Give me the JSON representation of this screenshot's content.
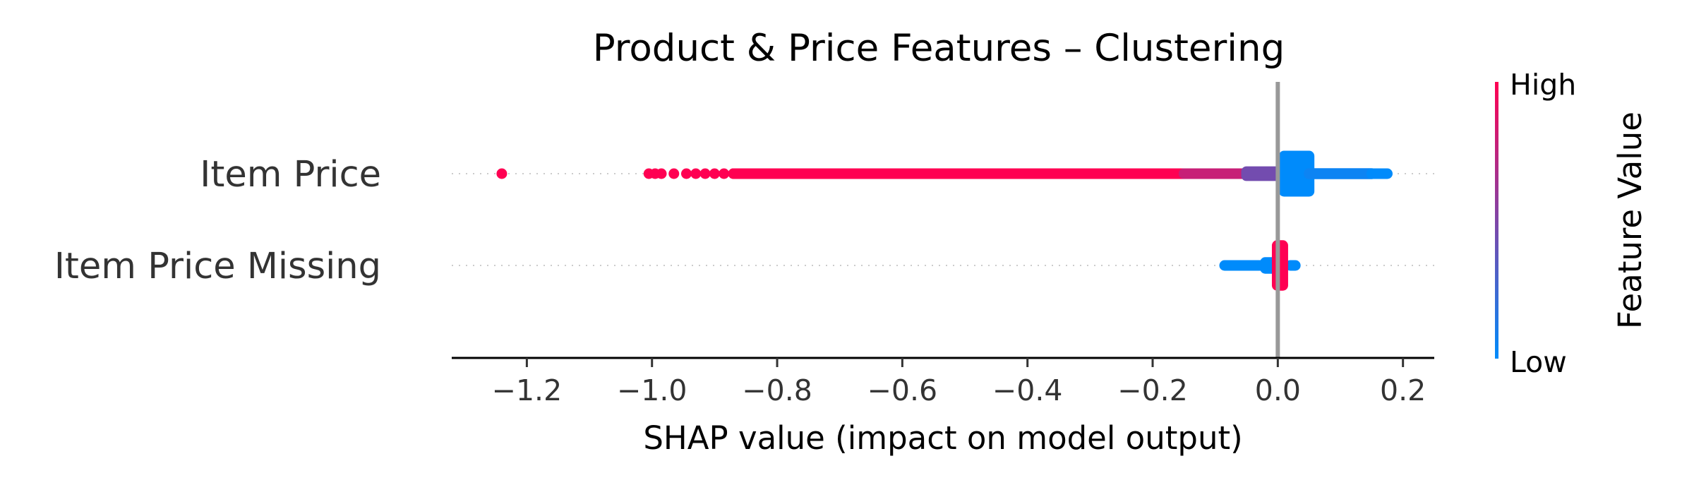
{
  "chart_data": {
    "type": "scatter",
    "title": "Product & Price Features – Clustering",
    "xlabel": "SHAP value (impact on model output)",
    "xlim": [
      -1.32,
      0.25
    ],
    "xticks": [
      -1.2,
      -1.0,
      -0.8,
      -0.6,
      -0.4,
      -0.2,
      0.0,
      0.2
    ],
    "xtick_labels": [
      "−1.2",
      "−1.0",
      "−0.8",
      "−0.6",
      "−0.4",
      "−0.2",
      "0.0",
      "0.2"
    ],
    "zero_line": 0.0,
    "features": [
      {
        "name": "Item Price",
        "points": [
          {
            "x": -1.24,
            "v": 1.0
          },
          {
            "x": -1.005,
            "v": 1.0
          },
          {
            "x": -0.995,
            "v": 1.0
          },
          {
            "x": -0.985,
            "v": 1.0
          },
          {
            "x": -0.965,
            "v": 1.0
          },
          {
            "x": -0.945,
            "v": 1.0
          },
          {
            "x": -0.93,
            "v": 1.0
          },
          {
            "x": -0.915,
            "v": 1.0
          },
          {
            "x": -0.9,
            "v": 1.0
          },
          {
            "x": -0.885,
            "v": 1.0
          },
          {
            "x": -0.87,
            "v": 1.0
          }
        ],
        "bands": [
          {
            "x0": -0.87,
            "x1": -0.82,
            "half_spread": 0.05,
            "v": 1.0
          },
          {
            "x0": -0.82,
            "x1": -0.55,
            "half_spread": 0.08,
            "v": 1.0
          },
          {
            "x0": -0.55,
            "x1": -0.15,
            "half_spread": 0.09,
            "v": 1.0
          },
          {
            "x0": -0.15,
            "x1": -0.05,
            "half_spread": 0.1,
            "v": 0.78
          },
          {
            "x0": -0.05,
            "x1": 0.01,
            "half_spread": 0.16,
            "v": 0.45
          },
          {
            "x0": 0.01,
            "x1": 0.05,
            "half_spread": 0.5,
            "v": 0.0
          },
          {
            "x0": 0.05,
            "x1": 0.15,
            "half_spread": 0.12,
            "v": 0.05
          },
          {
            "x0": 0.15,
            "x1": 0.175,
            "half_spread": 0.08,
            "v": 0.0
          }
        ]
      },
      {
        "name": "Item Price Missing",
        "points": [],
        "bands": [
          {
            "x0": -0.085,
            "x1": -0.02,
            "half_spread": 0.1,
            "v": 0.0
          },
          {
            "x0": -0.02,
            "x1": 0.0,
            "half_spread": 0.18,
            "v": 0.0
          },
          {
            "x0": 0.02,
            "x1": 0.028,
            "half_spread": 0.1,
            "v": 0.0
          },
          {
            "x0": -0.001,
            "x1": 0.008,
            "half_spread": 0.55,
            "v": 1.0
          }
        ]
      }
    ],
    "colorbar": {
      "label": "Feature Value",
      "high_label": "High",
      "low_label": "Low",
      "low_color": "#008bfb",
      "high_color": "#ff0052"
    }
  }
}
